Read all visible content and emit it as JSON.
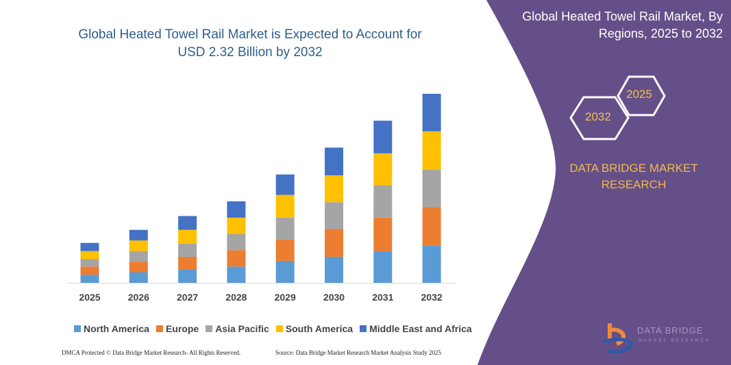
{
  "title": "Global Heated Towel Rail Market is Expected to Account for USD 2.32 Billion by 2032",
  "right_panel": {
    "title": "Global Heated Towel Rail Market, By Regions, 2025 to 2032",
    "hex_start": "2025",
    "hex_end": "2032",
    "brand": "DATA BRIDGE MARKET RESEARCH",
    "logo_text": "DATA BRIDGE",
    "logo_sub": "MARKET RESEARCH",
    "panel_color": "#654f88"
  },
  "footer": {
    "left": "DMCA Protected © Data Bridge Market Research- All Rights Reserved.",
    "right": "Source: Data Bridge Market Research Market Analysis Study 2025"
  },
  "chart_data": {
    "type": "bar",
    "stacked": true,
    "title": "Global Heated Towel Rail Market is Expected to Account for USD 2.32 Billion by 2032",
    "xlabel": "",
    "ylabel": "",
    "unit": "USD Billion (estimated)",
    "grid": false,
    "legend_position": "bottom",
    "ylim": [
      0,
      2.32
    ],
    "categories": [
      "2025",
      "2026",
      "2027",
      "2028",
      "2029",
      "2030",
      "2031",
      "2032"
    ],
    "series": [
      {
        "name": "North America",
        "color": "#5b9bd5",
        "values": [
          0.1,
          0.13,
          0.16,
          0.2,
          0.27,
          0.32,
          0.39,
          0.46
        ]
      },
      {
        "name": "Europe",
        "color": "#ed7d31",
        "values": [
          0.1,
          0.13,
          0.16,
          0.2,
          0.26,
          0.34,
          0.41,
          0.47
        ]
      },
      {
        "name": "Asia Pacific",
        "color": "#a5a5a5",
        "values": [
          0.09,
          0.13,
          0.16,
          0.2,
          0.27,
          0.33,
          0.4,
          0.46
        ]
      },
      {
        "name": "South America",
        "color": "#ffc000",
        "values": [
          0.1,
          0.13,
          0.17,
          0.2,
          0.28,
          0.33,
          0.39,
          0.47
        ]
      },
      {
        "name": "Middle East and Africa",
        "color": "#4472c4",
        "values": [
          0.1,
          0.13,
          0.17,
          0.2,
          0.25,
          0.34,
          0.4,
          0.46
        ]
      }
    ]
  }
}
